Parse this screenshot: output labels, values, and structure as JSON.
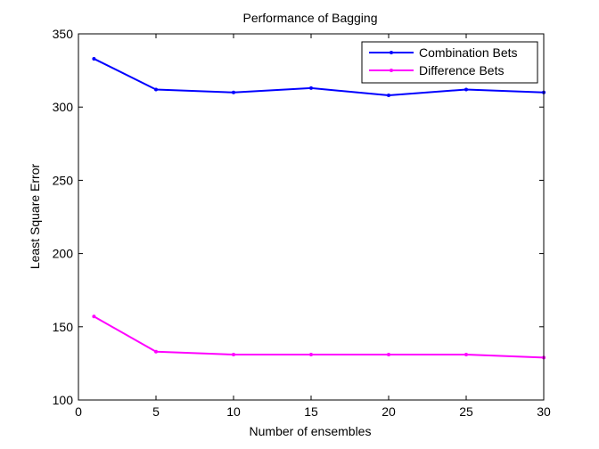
{
  "chart_data": {
    "type": "line",
    "title": "Performance of Bagging",
    "xlabel": "Number of ensembles",
    "ylabel": "Least Square Error",
    "xlim": [
      0,
      30
    ],
    "ylim": [
      100,
      350
    ],
    "xticks": [
      0,
      5,
      10,
      15,
      20,
      25,
      30
    ],
    "yticks": [
      100,
      150,
      200,
      250,
      300,
      350
    ],
    "x": [
      1,
      5,
      10,
      15,
      20,
      25,
      30
    ],
    "grid": false,
    "legend_position": "top-right",
    "series": [
      {
        "name": "Combination Bets",
        "color": "#0000ff",
        "marker": "dot",
        "values": [
          333,
          312,
          310,
          313,
          308,
          312,
          310
        ]
      },
      {
        "name": "Difference Bets",
        "color": "#ff00ff",
        "marker": "dot",
        "values": [
          157,
          133,
          131,
          131,
          131,
          131,
          129
        ]
      }
    ]
  }
}
